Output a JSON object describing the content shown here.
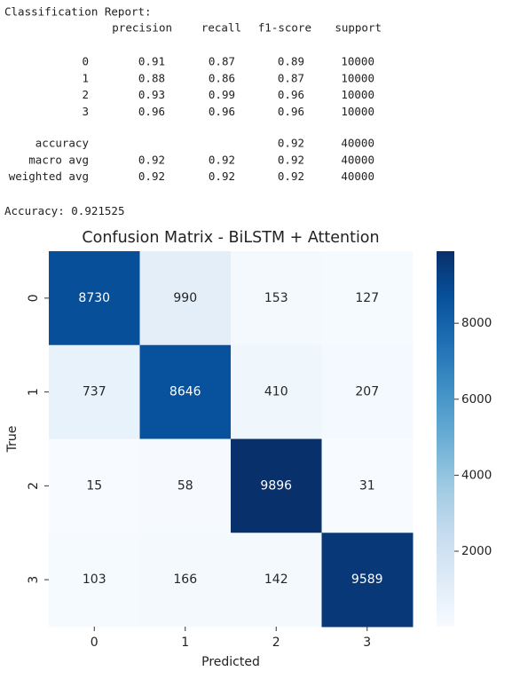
{
  "report": {
    "title": "Classification Report:",
    "columns": [
      "precision",
      "recall",
      "f1-score",
      "support"
    ],
    "rows": [
      {
        "label": "0",
        "values": [
          0.91,
          0.87,
          0.89,
          10000
        ]
      },
      {
        "label": "1",
        "values": [
          0.88,
          0.86,
          0.87,
          10000
        ]
      },
      {
        "label": "2",
        "values": [
          0.93,
          0.99,
          0.96,
          10000
        ]
      },
      {
        "label": "3",
        "values": [
          0.96,
          0.96,
          0.96,
          10000
        ]
      }
    ],
    "summary": [
      {
        "label": "accuracy",
        "values": [
          null,
          null,
          0.92,
          40000
        ]
      },
      {
        "label": "macro avg",
        "values": [
          0.92,
          0.92,
          0.92,
          40000
        ]
      },
      {
        "label": "weighted avg",
        "values": [
          0.92,
          0.92,
          0.92,
          40000
        ]
      }
    ],
    "accuracy": {
      "label": "Accuracy:",
      "value": 0.921525
    }
  },
  "chart_data": {
    "type": "heatmap",
    "title": "Confusion Matrix - BiLSTM + Attention",
    "x_label": "Predicted",
    "y_label": "True",
    "x_categories": [
      "0",
      "1",
      "2",
      "3"
    ],
    "y_categories": [
      "0",
      "1",
      "2",
      "3"
    ],
    "values": [
      [
        8730,
        990,
        153,
        127
      ],
      [
        737,
        8646,
        410,
        207
      ],
      [
        15,
        58,
        9896,
        31
      ],
      [
        103,
        166,
        142,
        9589
      ]
    ],
    "cmap": "Blues",
    "clim": [
      15,
      9896
    ],
    "colorbar_ticks": [
      2000,
      4000,
      6000,
      8000
    ]
  }
}
